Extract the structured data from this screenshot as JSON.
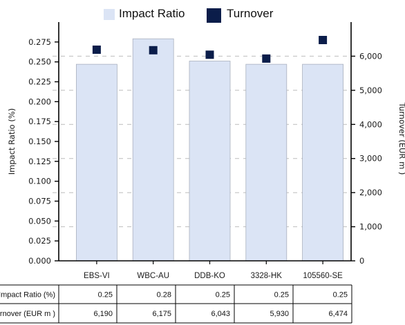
{
  "chart_data": {
    "type": "bar",
    "categories": [
      "EBS-VI",
      "WBC-AU",
      "DDB-KO",
      "3328-HK",
      "105560-SE"
    ],
    "series": [
      {
        "name": "Impact Ratio",
        "type": "bar",
        "axis": "left",
        "values": [
          0.247,
          0.279,
          0.251,
          0.247,
          0.247
        ],
        "table_values": [
          "0.25",
          "0.28",
          "0.25",
          "0.25",
          "0.25"
        ],
        "color": "#dbe4f5",
        "edge_color": "#a9b0bd"
      },
      {
        "name": "Turnover",
        "type": "scatter",
        "marker": "square",
        "axis": "right",
        "values": [
          6190,
          6175,
          6043,
          5930,
          6474
        ],
        "table_values": [
          "6,190",
          "6,175",
          "6,043",
          "5,930",
          "6,474"
        ],
        "color": "#0b1d4a"
      }
    ],
    "y_left": {
      "label": "Impact Ratio (%)",
      "ylim": [
        0,
        0.3
      ],
      "ticks": [
        0.0,
        0.025,
        0.05,
        0.075,
        0.1,
        0.125,
        0.15,
        0.175,
        0.2,
        0.225,
        0.25,
        0.275
      ],
      "tick_labels": [
        "0.000",
        "0.025",
        "0.050",
        "0.075",
        "0.100",
        "0.125",
        "0.150",
        "0.175",
        "0.200",
        "0.225",
        "0.250",
        "0.275"
      ]
    },
    "y_right": {
      "label": "Turnover (EUR m )",
      "ylim": [
        0,
        7000
      ],
      "ticks": [
        0,
        1000,
        2000,
        3000,
        4000,
        5000,
        6000
      ],
      "tick_labels": [
        "0",
        "1,000",
        "2,000",
        "3,000",
        "4,000",
        "5,000",
        "6,000"
      ]
    },
    "grid": "right-axis dashed horizontal",
    "legend": "top-center",
    "table": {
      "row_labels": [
        "Impact Ratio (%)",
        "Turnover (EUR m )"
      ]
    }
  }
}
